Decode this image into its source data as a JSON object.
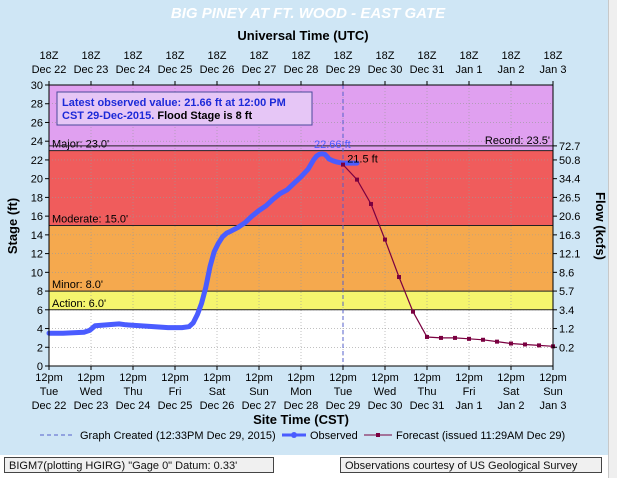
{
  "chart_data": {
    "type": "line",
    "title": "BIG PINEY AT FT. WOOD - EAST GATE",
    "top_axis_title": "Universal Time (UTC)",
    "bottom_axis_title": "Site Time (CST)",
    "ylabel_left": "Stage (ft)",
    "ylabel_right": "Flow (kcfs)",
    "ylim": [
      0,
      30
    ],
    "y_ticks": [
      0,
      2,
      4,
      6,
      8,
      10,
      12,
      14,
      16,
      18,
      20,
      22,
      24,
      26,
      28,
      30
    ],
    "right_ticks": [
      "72.7",
      "50.8",
      "34.4",
      "26.5",
      "20.6",
      "16.3",
      "12.1",
      "8.6",
      "5.7",
      "3.4",
      "1.2",
      "0.2"
    ],
    "right_tick_stages": [
      23.5,
      22,
      20,
      18,
      16,
      14,
      12,
      10,
      8,
      6,
      4,
      2
    ],
    "top_ticks": [
      {
        "h": "18Z",
        "d": "Dec 22"
      },
      {
        "h": "18Z",
        "d": "Dec 23"
      },
      {
        "h": "18Z",
        "d": "Dec 24"
      },
      {
        "h": "18Z",
        "d": "Dec 25"
      },
      {
        "h": "18Z",
        "d": "Dec 26"
      },
      {
        "h": "18Z",
        "d": "Dec 27"
      },
      {
        "h": "18Z",
        "d": "Dec 28"
      },
      {
        "h": "18Z",
        "d": "Dec 29"
      },
      {
        "h": "18Z",
        "d": "Dec 30"
      },
      {
        "h": "18Z",
        "d": "Dec 31"
      },
      {
        "h": "18Z",
        "d": "Jan 1"
      },
      {
        "h": "18Z",
        "d": "Jan 2"
      },
      {
        "h": "18Z",
        "d": "Jan 3"
      }
    ],
    "bottom_ticks": [
      {
        "t": "12pm",
        "w": "Tue",
        "d": "Dec 22"
      },
      {
        "t": "12pm",
        "w": "Wed",
        "d": "Dec 23"
      },
      {
        "t": "12pm",
        "w": "Thu",
        "d": "Dec 24"
      },
      {
        "t": "12pm",
        "w": "Fri",
        "d": "Dec 25"
      },
      {
        "t": "12pm",
        "w": "Sat",
        "d": "Dec 26"
      },
      {
        "t": "12pm",
        "w": "Sun",
        "d": "Dec 27"
      },
      {
        "t": "12pm",
        "w": "Mon",
        "d": "Dec 28"
      },
      {
        "t": "12pm",
        "w": "Tue",
        "d": "Dec 29"
      },
      {
        "t": "12pm",
        "w": "Wed",
        "d": "Dec 30"
      },
      {
        "t": "12pm",
        "w": "Thu",
        "d": "Dec 31"
      },
      {
        "t": "12pm",
        "w": "Fri",
        "d": "Jan 1"
      },
      {
        "t": "12pm",
        "w": "Sat",
        "d": "Jan 2"
      },
      {
        "t": "12pm",
        "w": "Sun",
        "d": "Jan 3"
      }
    ],
    "flood_bands": [
      {
        "from": 23.0,
        "to": 30,
        "color": "#e0a0f0"
      },
      {
        "from": 15.0,
        "to": 23.0,
        "color": "#f05c5c"
      },
      {
        "from": 8.0,
        "to": 15.0,
        "color": "#f5a94e"
      },
      {
        "from": 6.0,
        "to": 8.0,
        "color": "#f5f56e"
      }
    ],
    "stage_lines": [
      {
        "label": "Major: 23.0'",
        "value": 23.0
      },
      {
        "label": "Moderate: 15.0'",
        "value": 15.0
      },
      {
        "label": "Minor: 8.0'",
        "value": 8.0
      },
      {
        "label": "Action: 6.0'",
        "value": 6.0
      }
    ],
    "record": {
      "label": "Record: 23.5'",
      "value": 23.5
    },
    "observed": {
      "name": "Observed",
      "color": "#4a5cff",
      "x": [
        0,
        1,
        2.5,
        2.9,
        3.3,
        5,
        5.5,
        6.5,
        8.5,
        9,
        9.5,
        10,
        10.3,
        10.6,
        10.9,
        11.2,
        11.5,
        11.8,
        12.1,
        12.4,
        12.7,
        13,
        13.5,
        14,
        14.5,
        15,
        15.5,
        16,
        16.5,
        17,
        17.5,
        18,
        18.5,
        18.7,
        18.9,
        19.1,
        19.3,
        19.5,
        19.7,
        19.9,
        20,
        20.3,
        20.5,
        20.8,
        21,
        21.4,
        21.7,
        22
      ],
      "y": [
        3.5,
        3.5,
        3.6,
        3.8,
        4.3,
        4.5,
        4.4,
        4.3,
        4.1,
        4.1,
        4.1,
        4.2,
        4.6,
        5.5,
        6.7,
        8.4,
        10.6,
        12.2,
        13.1,
        13.8,
        14.2,
        14.4,
        14.8,
        15.3,
        16.0,
        16.6,
        17.1,
        17.8,
        18.4,
        18.8,
        19.5,
        20.2,
        21.0,
        21.5,
        22.0,
        22.4,
        22.6,
        22.66,
        22.6,
        22.3,
        22.1,
        21.9,
        21.8,
        21.7,
        21.66,
        21.66,
        21.66,
        21.66
      ]
    },
    "forecast": {
      "name": "Forecast (issued 11:29AM Dec 29)",
      "color": "#7a0040",
      "x": [
        21,
        22,
        23,
        24,
        25,
        26,
        27,
        28,
        29,
        30,
        31,
        32,
        33,
        34,
        35,
        36
      ],
      "y": [
        21.5,
        19.9,
        17.3,
        13.5,
        9.5,
        5.8,
        3.1,
        3.0,
        3.0,
        2.9,
        2.8,
        2.6,
        2.4,
        2.3,
        2.2,
        2.1
      ]
    },
    "observed_label": "22.66 ft",
    "forecast_label": "21.5 ft",
    "created_x": 21,
    "info_box": {
      "line1": "Latest observed value: 21.66 ft at 12:00 PM",
      "line2a": "CST 29-Dec-2015. ",
      "line2b": "Flood Stage is 8 ft"
    },
    "legend": {
      "created": "Graph Created (12:33PM Dec 29, 2015)",
      "observed": "Observed",
      "forecast": "Forecast (issued 11:29AM Dec 29)"
    },
    "x_range": [
      0,
      36
    ],
    "grid": true
  },
  "colors": {
    "background_band_top": "#e0a0f0",
    "plot_bg_low": "#ffffff"
  },
  "footer": {
    "left": "BIGM7(plotting HGIRG) \"Gage 0\" Datum: 0.33'",
    "right": "Observations courtesy of US Geological Survey"
  }
}
